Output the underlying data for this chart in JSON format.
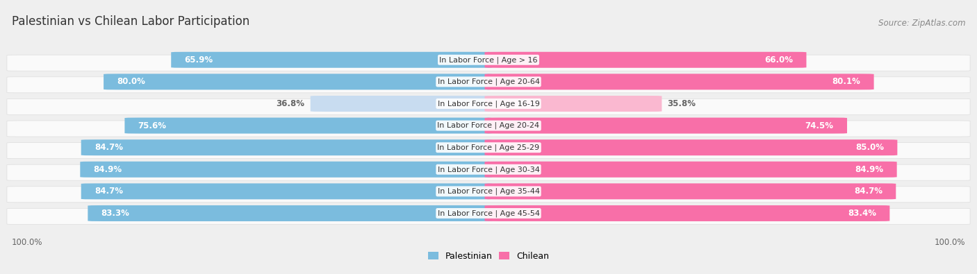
{
  "title": "Palestinian vs Chilean Labor Participation",
  "source": "Source: ZipAtlas.com",
  "categories": [
    "In Labor Force | Age > 16",
    "In Labor Force | Age 20-64",
    "In Labor Force | Age 16-19",
    "In Labor Force | Age 20-24",
    "In Labor Force | Age 25-29",
    "In Labor Force | Age 30-34",
    "In Labor Force | Age 35-44",
    "In Labor Force | Age 45-54"
  ],
  "palestinian_values": [
    65.9,
    80.0,
    36.8,
    75.6,
    84.7,
    84.9,
    84.7,
    83.3
  ],
  "chilean_values": [
    66.0,
    80.1,
    35.8,
    74.5,
    85.0,
    84.9,
    84.7,
    83.4
  ],
  "palestinian_color": "#7BBCDE",
  "palestinian_color_light": "#C8DCF0",
  "chilean_color": "#F86FA8",
  "chilean_color_light": "#FAB8D0",
  "background_color": "#EFEFEF",
  "row_bg_color": "#FAFAFA",
  "row_border_color": "#DDDDDD",
  "title_color": "#333333",
  "source_color": "#888888",
  "label_color_dark": "#FFFFFF",
  "label_color_light": "#666666",
  "bottom_label_color": "#666666",
  "title_fontsize": 12,
  "source_fontsize": 8.5,
  "bar_label_fontsize": 8.5,
  "category_fontsize": 8,
  "legend_fontsize": 9,
  "threshold": 50.0,
  "max_value": 100.0
}
